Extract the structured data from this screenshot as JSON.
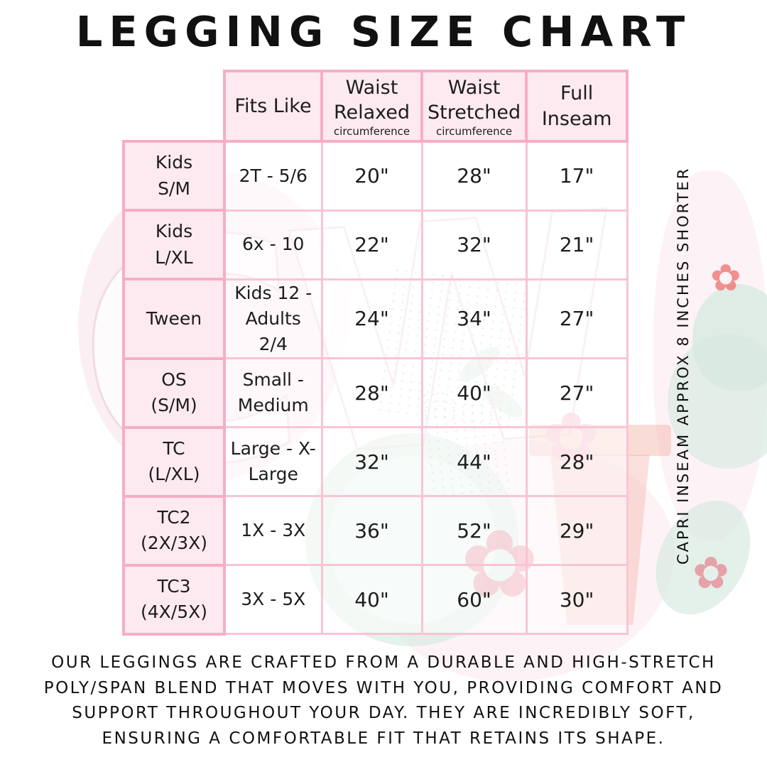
{
  "title": "LEGGING SIZE CHART",
  "colors": {
    "grid_pink": "#f9c4d5",
    "outline_pink": "#f6adc8",
    "cell_fill_pink": "#fdeaf1",
    "text_black": "#1d1d1d",
    "watermark_teal": "#d5e8df",
    "watermark_coral": "#f3b2a5",
    "watermark_red": "#e76e7b",
    "watermark_pink": "#f9dde7"
  },
  "table": {
    "columns": [
      {
        "label": "Fits Like",
        "sub": ""
      },
      {
        "label": "Waist Relaxed",
        "sub": "circumference"
      },
      {
        "label": "Waist Stretched",
        "sub": "circumference"
      },
      {
        "label": "Full Inseam",
        "sub": ""
      }
    ],
    "rows": [
      {
        "size": "Kids S/M",
        "fits_like": "2T - 5/6",
        "waist_relaxed": "20\"",
        "waist_stretched": "28\"",
        "full_inseam": "17\""
      },
      {
        "size": "Kids L/XL",
        "fits_like": "6x - 10",
        "waist_relaxed": "22\"",
        "waist_stretched": "32\"",
        "full_inseam": "21\""
      },
      {
        "size": "Tween",
        "fits_like": "Kids 12 - Adults 2/4",
        "waist_relaxed": "24\"",
        "waist_stretched": "34\"",
        "full_inseam": "27\""
      },
      {
        "size": "OS (S/M)",
        "fits_like": "Small - Medium",
        "waist_relaxed": "28\"",
        "waist_stretched": "40\"",
        "full_inseam": "27\""
      },
      {
        "size": "TC (L/XL)",
        "fits_like": "Large - X-Large",
        "waist_relaxed": "32\"",
        "waist_stretched": "44\"",
        "full_inseam": "28\""
      },
      {
        "size": "TC2 (2X/3X)",
        "fits_like": "1X - 3X",
        "waist_relaxed": "36\"",
        "waist_stretched": "52\"",
        "full_inseam": "29\""
      },
      {
        "size": "TC3 (4X/5X)",
        "fits_like": "3X - 5X",
        "waist_relaxed": "40\"",
        "waist_stretched": "60\"",
        "full_inseam": "30\""
      }
    ]
  },
  "side_note": "CAPRI INSEAM APPROX 8 INCHES SHORTER",
  "description": "OUR LEGGINGS ARE CRAFTED FROM A DURABLE AND HIGH-STRETCH POLY/SPAN BLEND THAT MOVES WITH YOU, PROVIDING COMFORT AND SUPPORT THROUGHOUT YOUR DAY. THEY ARE INCREDIBLY SOFT, ENSURING A COMFORTABLE FIT THAT RETAINS ITS SHAPE.",
  "watermark": {
    "logo_text": "CW",
    "flower_glyph": "✿"
  }
}
